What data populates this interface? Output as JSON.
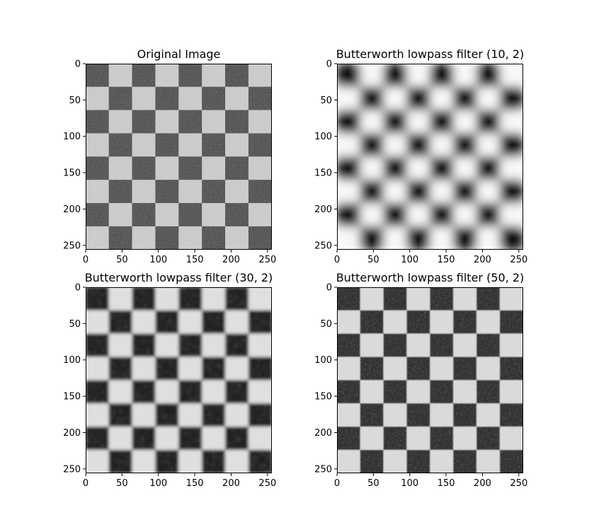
{
  "figure": {
    "background": "#ffffff",
    "tick_color": "#000000",
    "frame_color": "#000000"
  },
  "chart_data": [
    {
      "type": "heatmap",
      "title": "Original Image",
      "colormap": "gray",
      "grid": false,
      "image_size": [
        256,
        256
      ],
      "pattern": "checkerboard",
      "square_size": 32,
      "squares_per_side": 8,
      "noise": "heavy",
      "blur": "none",
      "dark_level": 0.33,
      "light_level": 0.8,
      "xlim": [
        0,
        256
      ],
      "ylim": [
        256,
        0
      ],
      "xticks": [
        0,
        50,
        100,
        150,
        200,
        250
      ],
      "yticks": [
        0,
        50,
        100,
        150,
        200,
        250
      ]
    },
    {
      "type": "heatmap",
      "title": "Butterworth lowpass filter (10, 2)",
      "colormap": "gray",
      "grid": false,
      "image_size": [
        256,
        256
      ],
      "pattern": "checkerboard",
      "square_size": 32,
      "squares_per_side": 8,
      "noise": "none",
      "blur": "strong",
      "dark_level": 0.05,
      "light_level": 0.97,
      "xlim": [
        0,
        256
      ],
      "ylim": [
        256,
        0
      ],
      "xticks": [
        0,
        50,
        100,
        150,
        200,
        250
      ],
      "yticks": [
        0,
        50,
        100,
        150,
        200,
        250
      ]
    },
    {
      "type": "heatmap",
      "title": "Butterworth lowpass filter (30, 2)",
      "colormap": "gray",
      "grid": false,
      "image_size": [
        256,
        256
      ],
      "pattern": "checkerboard",
      "square_size": 32,
      "squares_per_side": 8,
      "noise": "light",
      "blur": "medium",
      "dark_level": 0.12,
      "light_level": 0.88,
      "xlim": [
        0,
        256
      ],
      "ylim": [
        256,
        0
      ],
      "xticks": [
        0,
        50,
        100,
        150,
        200,
        250
      ],
      "yticks": [
        0,
        50,
        100,
        150,
        200,
        250
      ]
    },
    {
      "type": "heatmap",
      "title": "Butterworth lowpass filter (50, 2)",
      "colormap": "gray",
      "grid": false,
      "image_size": [
        256,
        256
      ],
      "pattern": "checkerboard",
      "square_size": 32,
      "squares_per_side": 8,
      "noise": "moderate",
      "blur": "light",
      "dark_level": 0.18,
      "light_level": 0.86,
      "xlim": [
        0,
        256
      ],
      "ylim": [
        256,
        0
      ],
      "xticks": [
        0,
        50,
        100,
        150,
        200,
        250
      ],
      "yticks": [
        0,
        50,
        100,
        150,
        200,
        250
      ]
    }
  ]
}
